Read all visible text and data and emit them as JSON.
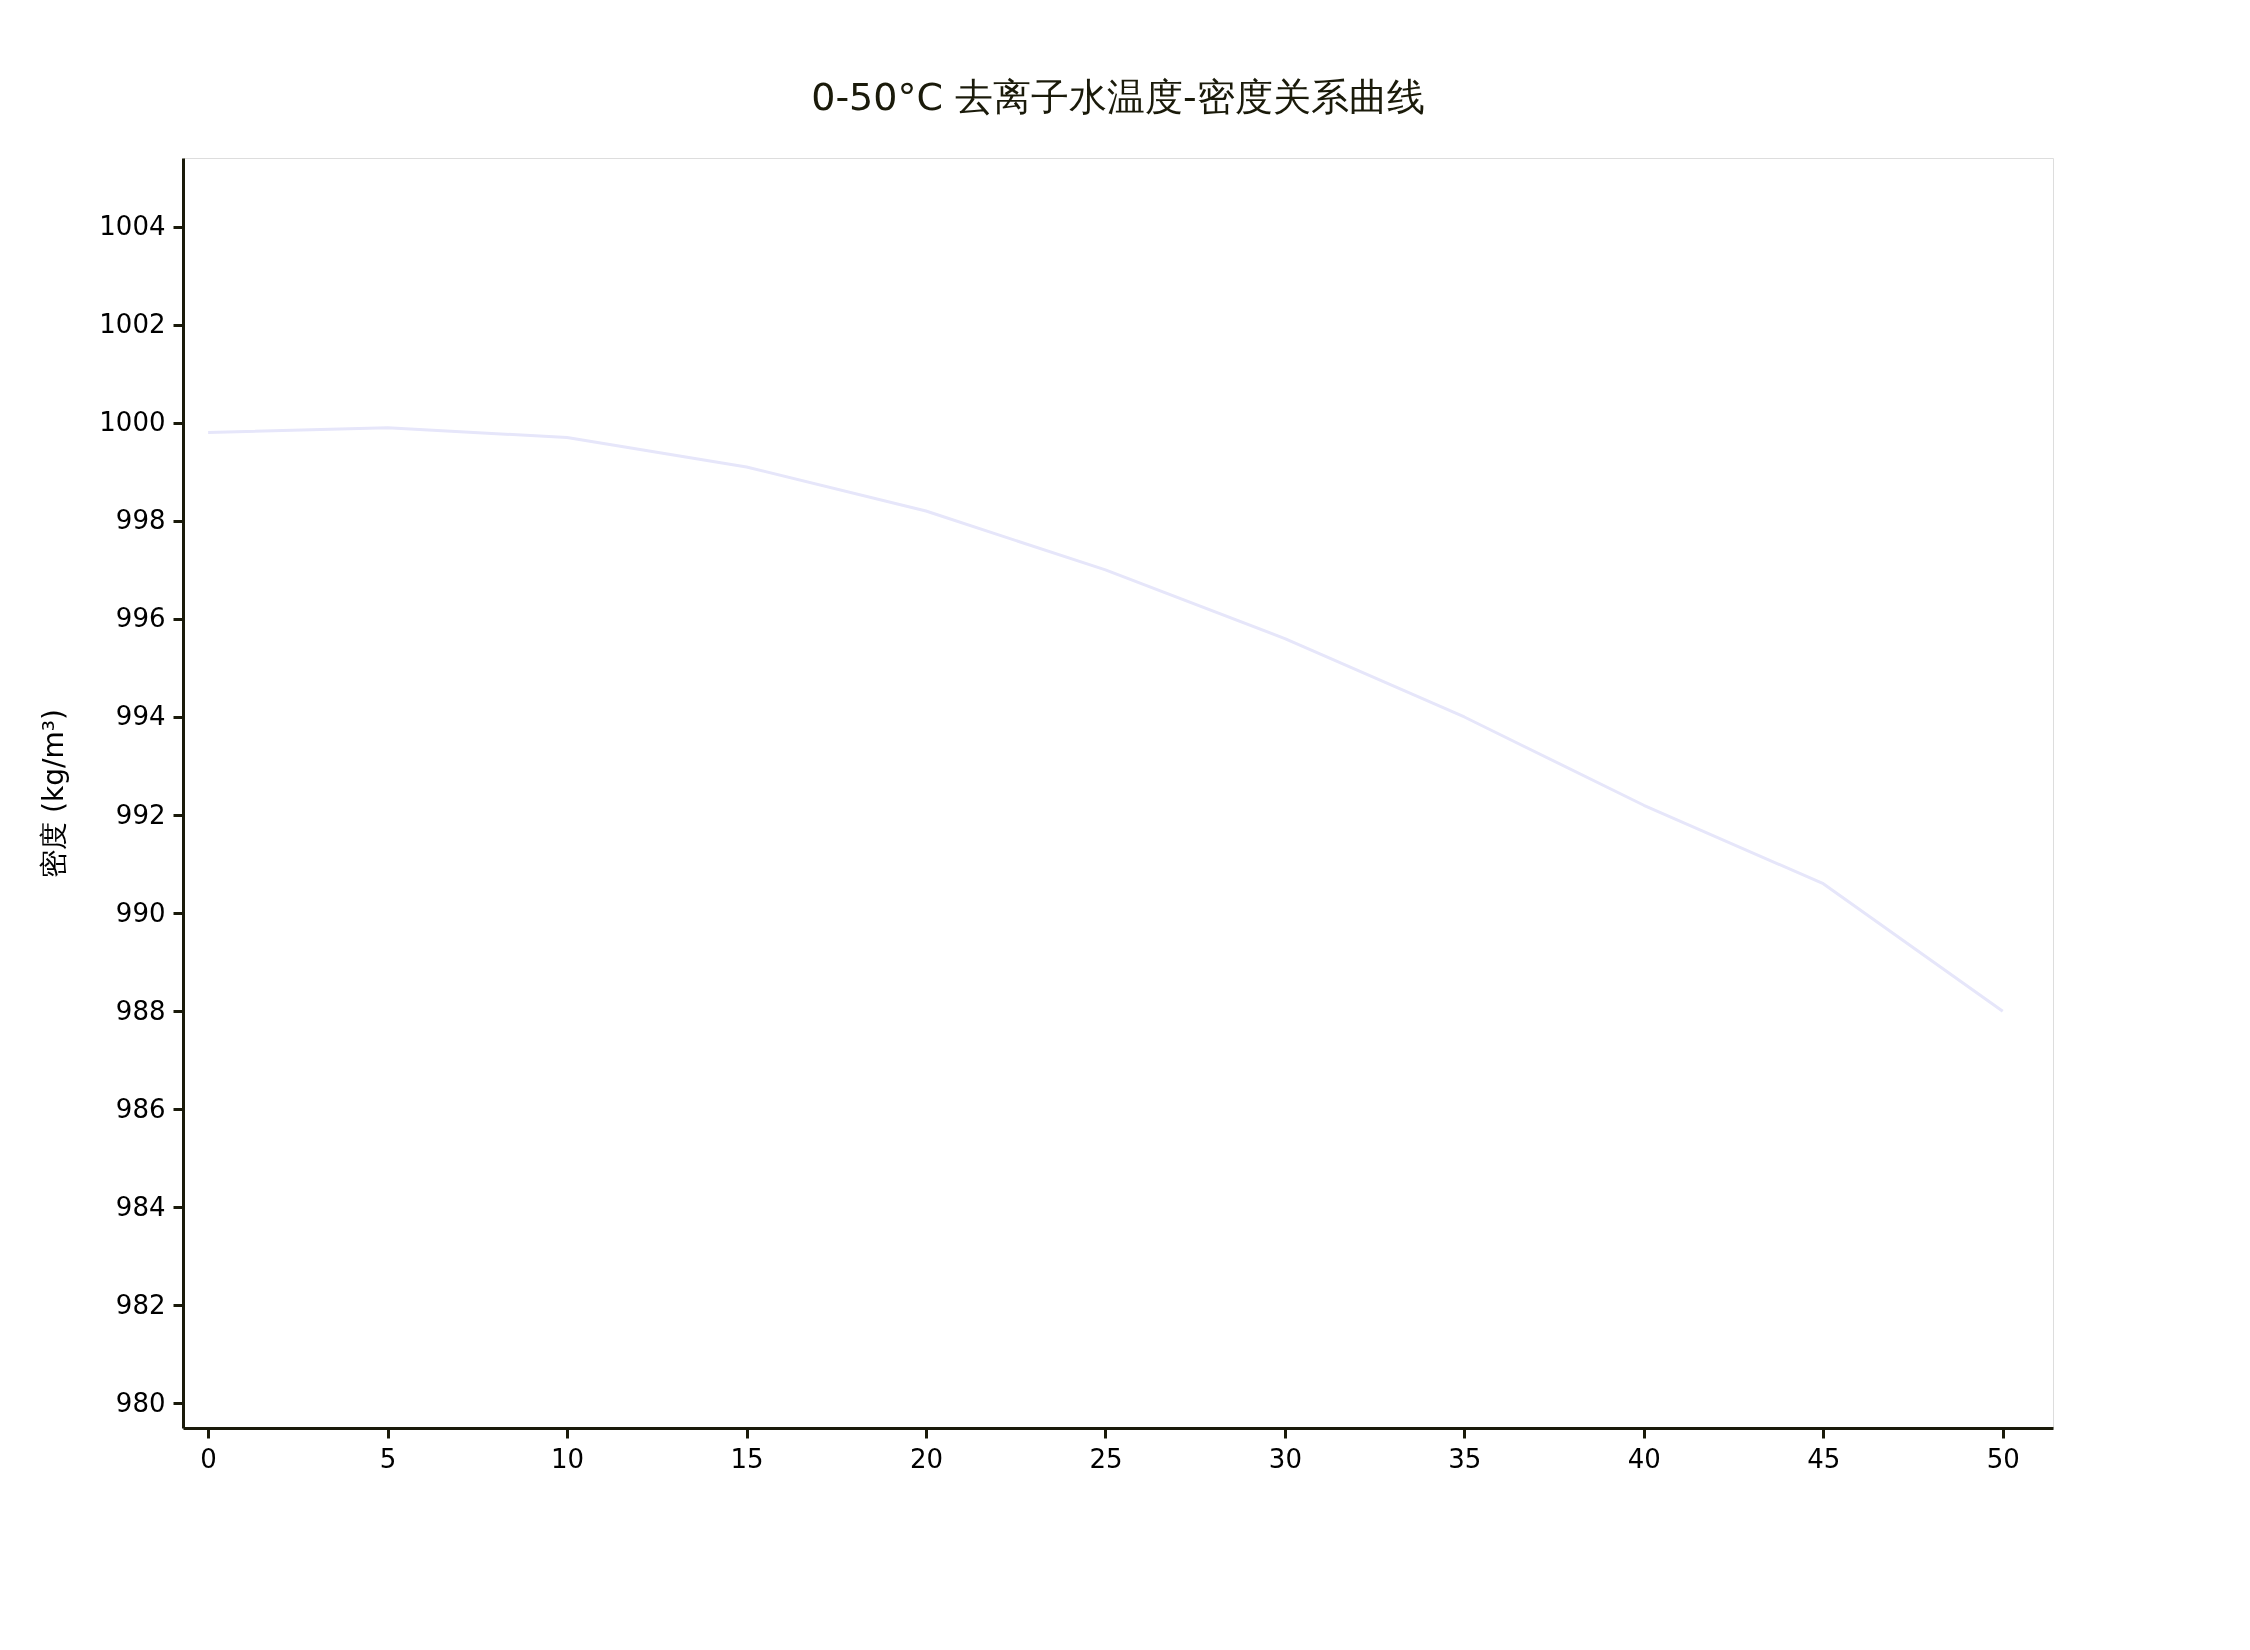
{
  "chart_data": {
    "type": "line",
    "title": "0-50°C 去离子水温度-密度关系曲线",
    "ylabel": "密度 (kg/m³)",
    "x": [
      0,
      5,
      10,
      15,
      20,
      25,
      30,
      35,
      40,
      45,
      50
    ],
    "series": [
      {
        "color": "#e6e6fa",
        "values": [
          999.8,
          999.9,
          999.7,
          999.1,
          998.2,
          997.0,
          995.6,
          994.0,
          992.2,
          990.6,
          988.0
        ]
      }
    ],
    "xlim": [
      -0.7,
      51.4
    ],
    "ylim": [
      979.5,
      1005.4
    ],
    "xticks": [
      0,
      5,
      10,
      15,
      20,
      25,
      30,
      35,
      40,
      45,
      50
    ],
    "yticks": [
      980,
      982,
      984,
      986,
      988,
      990,
      992,
      994,
      996,
      998,
      1000,
      1002,
      1004
    ],
    "grid": false,
    "marker": "none",
    "line_style": "solid"
  }
}
